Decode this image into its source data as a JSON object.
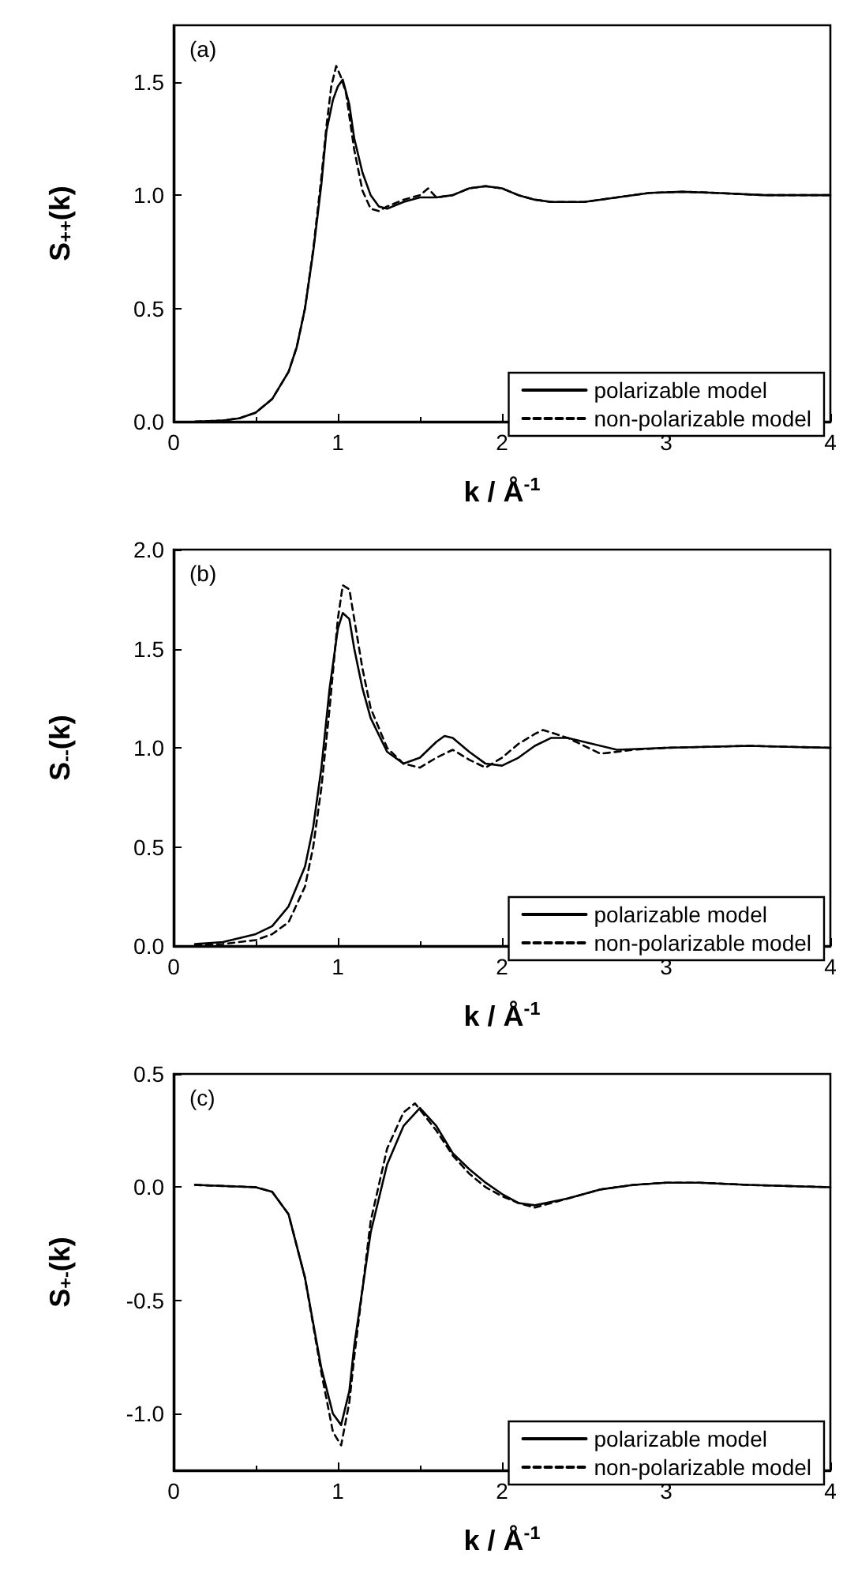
{
  "chart_data": [
    {
      "type": "line",
      "annotations": [
        "(a)"
      ],
      "xlabel": "k / Å$^{-1}$",
      "ylabel": "S$_{++}$(k)",
      "xlim": [
        0,
        4
      ],
      "xticks": [
        0,
        1,
        2,
        3,
        4
      ],
      "ylim": [
        0,
        1.75
      ],
      "yticks": [
        {
          "value": 0,
          "label": "0.0"
        },
        {
          "value": 0.5,
          "label": "0.5"
        },
        {
          "value": 1,
          "label": "1.0"
        },
        {
          "value": 1.5,
          "label": "1.5"
        }
      ],
      "legend": "bottom right",
      "grid": false,
      "marker": "none",
      "series": [
        {
          "name": "polarizable model",
          "color": "#000000",
          "line_style": "solid",
          "x": [
            0.13,
            0.3,
            0.4,
            0.5,
            0.6,
            0.7,
            0.75,
            0.8,
            0.85,
            0.9,
            0.93,
            0.97,
            1.0,
            1.03,
            1.07,
            1.1,
            1.15,
            1.2,
            1.25,
            1.3,
            1.4,
            1.5,
            1.6,
            1.7,
            1.8,
            1.9,
            2.0,
            2.1,
            2.2,
            2.3,
            2.5,
            2.7,
            2.9,
            3.1,
            3.3,
            3.6,
            4.0
          ],
          "values": [
            0,
            0.005,
            0.015,
            0.04,
            0.1,
            0.22,
            0.33,
            0.5,
            0.75,
            1.05,
            1.28,
            1.42,
            1.48,
            1.51,
            1.4,
            1.25,
            1.1,
            1.0,
            0.95,
            0.94,
            0.97,
            0.99,
            0.99,
            1.0,
            1.03,
            1.04,
            1.03,
            1.0,
            0.98,
            0.97,
            0.97,
            0.99,
            1.01,
            1.015,
            1.01,
            1.0,
            1.0
          ]
        },
        {
          "name": "non-polarizable model",
          "color": "#000000",
          "line_style": "dashed",
          "x": [
            0.13,
            0.3,
            0.4,
            0.5,
            0.6,
            0.7,
            0.75,
            0.8,
            0.85,
            0.9,
            0.93,
            0.96,
            0.99,
            1.02,
            1.05,
            1.1,
            1.15,
            1.2,
            1.25,
            1.3,
            1.4,
            1.5,
            1.55,
            1.6,
            1.7,
            1.8,
            1.9,
            2.0,
            2.1,
            2.2,
            2.3,
            2.5,
            2.7,
            2.9,
            3.1,
            3.3,
            3.6,
            4.0
          ],
          "values": [
            0,
            0.005,
            0.015,
            0.04,
            0.1,
            0.22,
            0.33,
            0.5,
            0.76,
            1.08,
            1.3,
            1.48,
            1.57,
            1.52,
            1.45,
            1.2,
            1.02,
            0.94,
            0.93,
            0.95,
            0.98,
            1.0,
            1.03,
            0.99,
            1.0,
            1.03,
            1.04,
            1.03,
            1.0,
            0.98,
            0.97,
            0.97,
            0.99,
            1.01,
            1.015,
            1.01,
            1.0,
            1.0
          ]
        }
      ]
    },
    {
      "type": "line",
      "annotations": [
        "(b)"
      ],
      "xlabel": "k / Å$^{-1}$",
      "ylabel": "S$_{--}$(k)",
      "xlim": [
        0,
        4
      ],
      "xticks": [
        0,
        1,
        2,
        3,
        4
      ],
      "ylim": [
        0,
        2
      ],
      "yticks": [
        {
          "value": 0,
          "label": "0.0"
        },
        {
          "value": 0.5,
          "label": "0.5"
        },
        {
          "value": 1,
          "label": "1.0"
        },
        {
          "value": 1.5,
          "label": "1.5"
        },
        {
          "value": 2,
          "label": "2.0"
        }
      ],
      "legend": "bottom right",
      "grid": false,
      "marker": "none",
      "series": [
        {
          "name": "polarizable model",
          "color": "#000000",
          "line_style": "solid",
          "x": [
            0.13,
            0.3,
            0.5,
            0.6,
            0.7,
            0.8,
            0.85,
            0.9,
            0.95,
            1.0,
            1.03,
            1.07,
            1.1,
            1.15,
            1.2,
            1.3,
            1.4,
            1.5,
            1.6,
            1.65,
            1.7,
            1.8,
            1.9,
            2.0,
            2.1,
            2.2,
            2.3,
            2.4,
            2.5,
            2.7,
            3.0,
            3.5,
            4.0
          ],
          "values": [
            0.01,
            0.02,
            0.06,
            0.1,
            0.2,
            0.4,
            0.6,
            0.9,
            1.3,
            1.6,
            1.68,
            1.65,
            1.5,
            1.3,
            1.15,
            0.98,
            0.92,
            0.95,
            1.03,
            1.06,
            1.05,
            0.98,
            0.92,
            0.91,
            0.95,
            1.01,
            1.05,
            1.05,
            1.03,
            0.99,
            1.0,
            1.01,
            1.0
          ]
        },
        {
          "name": "non-polarizable model",
          "color": "#000000",
          "line_style": "dashed",
          "x": [
            0.13,
            0.3,
            0.5,
            0.6,
            0.7,
            0.8,
            0.85,
            0.9,
            0.95,
            1.0,
            1.03,
            1.07,
            1.1,
            1.15,
            1.2,
            1.3,
            1.4,
            1.5,
            1.6,
            1.7,
            1.8,
            1.9,
            2.0,
            2.1,
            2.2,
            2.25,
            2.4,
            2.6,
            2.8,
            3.0,
            3.5,
            4.0
          ],
          "values": [
            0.005,
            0.01,
            0.03,
            0.06,
            0.12,
            0.3,
            0.5,
            0.8,
            1.2,
            1.65,
            1.82,
            1.8,
            1.65,
            1.4,
            1.2,
            1.0,
            0.92,
            0.9,
            0.95,
            0.99,
            0.94,
            0.9,
            0.95,
            1.02,
            1.07,
            1.09,
            1.05,
            0.97,
            0.99,
            1.0,
            1.01,
            1.0
          ]
        }
      ]
    },
    {
      "type": "line",
      "annotations": [
        "(c)"
      ],
      "xlabel": "k / Å$^{-1}$",
      "ylabel": "S$_{+-}$(k)",
      "xlim": [
        0,
        4
      ],
      "xticks": [
        0,
        1,
        2,
        3,
        4
      ],
      "ylim": [
        -1.25,
        0.5
      ],
      "yticks": [
        {
          "value": -1,
          "label": "-1.0"
        },
        {
          "value": -0.5,
          "label": "-0.5"
        },
        {
          "value": 0,
          "label": "0.0"
        },
        {
          "value": 0.5,
          "label": "0.5"
        }
      ],
      "legend": "bottom right",
      "grid": false,
      "marker": "none",
      "series": [
        {
          "name": "polarizable model",
          "color": "#000000",
          "line_style": "solid",
          "x": [
            0.13,
            0.5,
            0.6,
            0.7,
            0.8,
            0.9,
            0.97,
            1.02,
            1.07,
            1.1,
            1.2,
            1.3,
            1.4,
            1.5,
            1.6,
            1.7,
            1.8,
            1.9,
            2.0,
            2.1,
            2.2,
            2.4,
            2.6,
            2.8,
            3.0,
            3.2,
            3.5,
            4.0
          ],
          "values": [
            0.01,
            0.0,
            -0.02,
            -0.12,
            -0.4,
            -0.8,
            -1.0,
            -1.05,
            -0.9,
            -0.7,
            -0.2,
            0.1,
            0.27,
            0.35,
            0.27,
            0.15,
            0.08,
            0.02,
            -0.03,
            -0.07,
            -0.08,
            -0.05,
            -0.01,
            0.01,
            0.02,
            0.02,
            0.01,
            0.0
          ]
        },
        {
          "name": "non-polarizable model",
          "color": "#000000",
          "line_style": "dashed",
          "x": [
            0.13,
            0.5,
            0.6,
            0.7,
            0.8,
            0.9,
            0.97,
            1.02,
            1.07,
            1.1,
            1.2,
            1.3,
            1.4,
            1.47,
            1.6,
            1.7,
            1.8,
            1.9,
            2.0,
            2.1,
            2.2,
            2.4,
            2.6,
            2.8,
            3.0,
            3.2,
            3.5,
            4.0
          ],
          "values": [
            0.01,
            0.0,
            -0.02,
            -0.12,
            -0.4,
            -0.82,
            -1.08,
            -1.14,
            -0.95,
            -0.75,
            -0.15,
            0.17,
            0.33,
            0.37,
            0.25,
            0.14,
            0.06,
            0.0,
            -0.04,
            -0.07,
            -0.09,
            -0.05,
            -0.01,
            0.01,
            0.02,
            0.02,
            0.01,
            0.0
          ]
        }
      ]
    }
  ]
}
